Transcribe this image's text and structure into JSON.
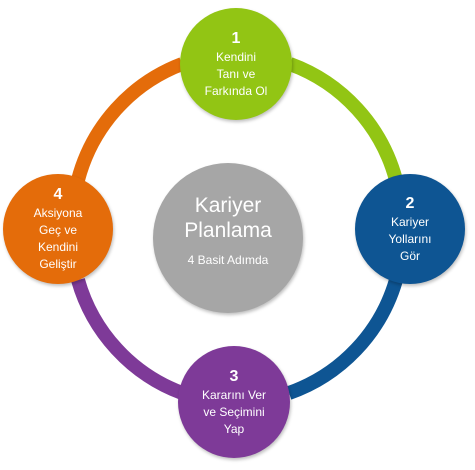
{
  "center": {
    "title_line1": "Kariyer",
    "title_line2": "Planlama",
    "subtitle": "4 Basit Adımda"
  },
  "steps": [
    {
      "number": "1",
      "line1": "Kendini",
      "line2": "Tanı ve",
      "line3": "Farkında Ol",
      "color": "#92c514"
    },
    {
      "number": "2",
      "line1": "Kariyer",
      "line2": "Yollarını",
      "line3": "Gör",
      "color": "#0e5593"
    },
    {
      "number": "3",
      "line1": "Kararını Ver",
      "line2": "ve Seçimini",
      "line3": "Yap",
      "color": "#7e3a98"
    },
    {
      "number": "4",
      "line1": "Aksiyona",
      "line2": "Geç ve",
      "line3": "Kendini",
      "line4": "Geliştir",
      "color": "#e46c0a"
    }
  ],
  "ring_colors": {
    "top_right": "#92c514",
    "bottom_right": "#0e5593",
    "bottom_left": "#7e3a98",
    "top_left": "#e46c0a"
  }
}
